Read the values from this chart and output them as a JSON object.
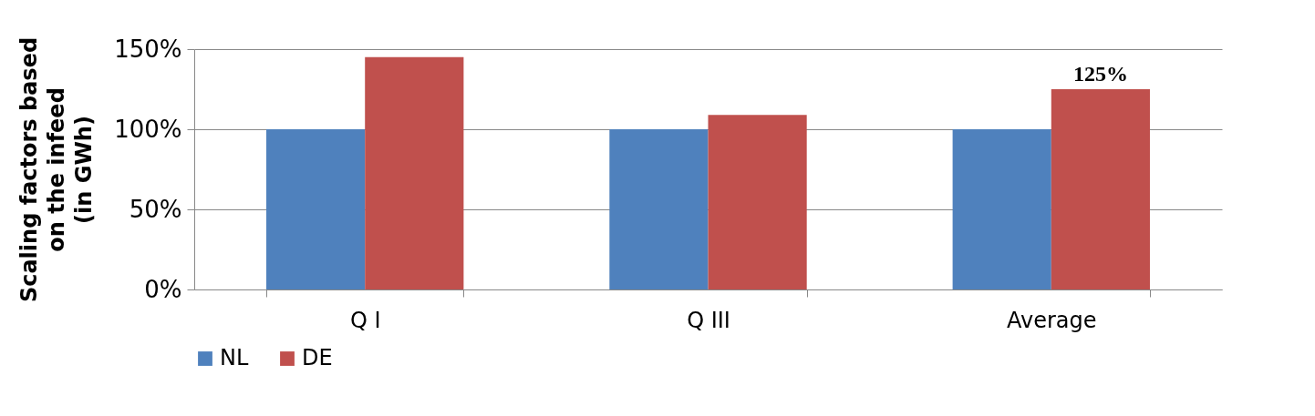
{
  "chart_data": {
    "type": "bar",
    "ylabel": "Scaling factors based\non the infeed\n(in GWh)",
    "categories": [
      "Q I",
      "Q III",
      "Average"
    ],
    "series": [
      {
        "name": "NL",
        "color": "#4f81bd",
        "values": [
          100,
          100,
          100
        ]
      },
      {
        "name": "DE",
        "color": "#c0504d",
        "values": [
          145,
          109,
          125
        ],
        "value_labels": [
          null,
          null,
          "125%"
        ]
      }
    ],
    "ylim": [
      0,
      150
    ],
    "yticks": [
      {
        "value": 0,
        "label": "0%"
      },
      {
        "value": 50,
        "label": "50%"
      },
      {
        "value": 100,
        "label": "100%"
      },
      {
        "value": 150,
        "label": "150%"
      }
    ],
    "grid": "y",
    "legend": "bottom"
  }
}
